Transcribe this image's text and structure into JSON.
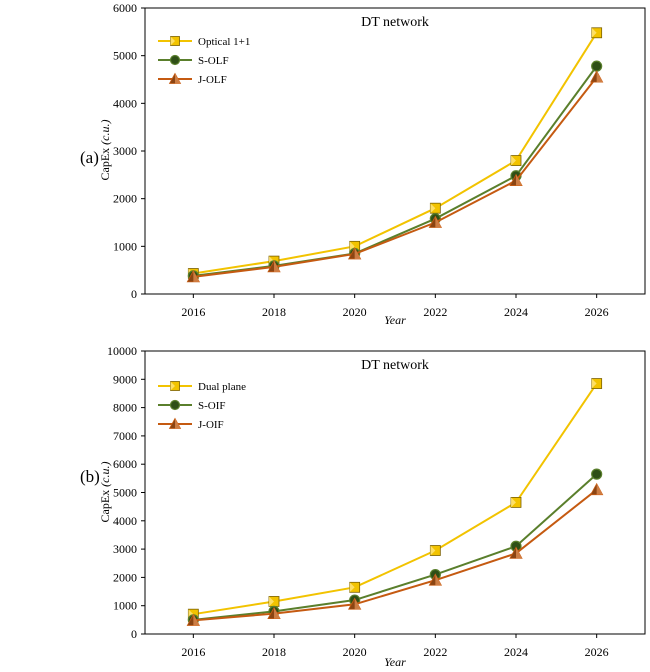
{
  "chart_data": [
    {
      "type": "line",
      "panel_label": "(a)",
      "title": "DT network",
      "xlabel": "Year",
      "ylabel": "CapEx",
      "ylabel_unit": "(c.u.)",
      "x": [
        2016,
        2018,
        2020,
        2022,
        2024,
        2026
      ],
      "ylim": [
        0,
        6000
      ],
      "yticks": [
        0,
        1000,
        2000,
        3000,
        4000,
        5000,
        6000
      ],
      "legend_position": "top-left",
      "grid": false,
      "series": [
        {
          "name": "Optical 1+1",
          "values": [
            430,
            690,
            1000,
            1800,
            2800,
            5480
          ],
          "color": "#f2c300",
          "marker": "square"
        },
        {
          "name": "S-OLF",
          "values": [
            380,
            590,
            850,
            1580,
            2480,
            4780
          ],
          "color": "#5a7f2c",
          "marker": "circle"
        },
        {
          "name": "J-OLF",
          "values": [
            360,
            570,
            840,
            1500,
            2380,
            4550
          ],
          "color": "#c55a11",
          "marker": "triangle"
        }
      ]
    },
    {
      "type": "line",
      "panel_label": "(b)",
      "title": "DT network",
      "xlabel": "Year",
      "ylabel": "CapEx",
      "ylabel_unit": "(c.u.)",
      "x": [
        2016,
        2018,
        2020,
        2022,
        2024,
        2026
      ],
      "ylim": [
        0,
        10000
      ],
      "yticks": [
        0,
        1000,
        2000,
        3000,
        4000,
        5000,
        6000,
        7000,
        8000,
        9000,
        10000
      ],
      "legend_position": "top-left",
      "grid": false,
      "series": [
        {
          "name": "Dual plane",
          "values": [
            700,
            1150,
            1650,
            2950,
            4650,
            8850
          ],
          "color": "#f2c300",
          "marker": "square"
        },
        {
          "name": "S-OIF",
          "values": [
            500,
            800,
            1200,
            2100,
            3100,
            5650
          ],
          "color": "#5a7f2c",
          "marker": "circle"
        },
        {
          "name": "J-OIF",
          "values": [
            480,
            720,
            1050,
            1900,
            2850,
            5100
          ],
          "color": "#c55a11",
          "marker": "triangle"
        }
      ]
    }
  ]
}
